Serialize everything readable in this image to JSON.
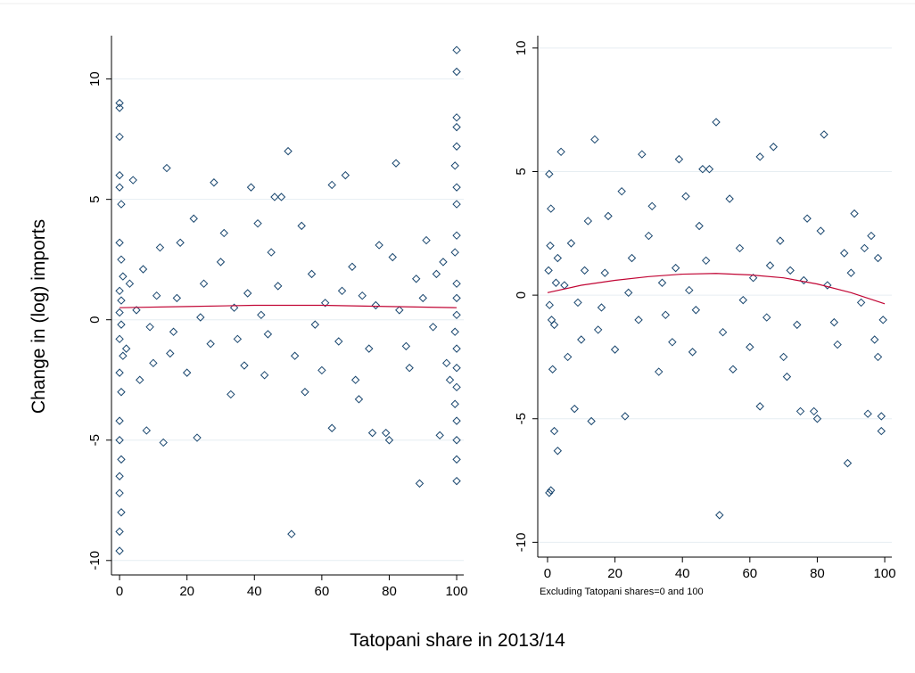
{
  "figure": {
    "xlabel": "Tatopani share in 2013/14",
    "ylabel": "Change in (log) imports"
  },
  "chart_data": [
    {
      "type": "scatter",
      "xlim": [
        -2.4,
        102.1
      ],
      "ylim": [
        -10.6,
        11.8
      ],
      "xticks": [
        0,
        20,
        40,
        60,
        80,
        100
      ],
      "yticks": [
        -10,
        -5,
        0,
        5,
        10
      ],
      "grid": true,
      "series": [
        {
          "kind": "marker",
          "color": "#1a476f",
          "x": [
            0,
            0,
            0,
            0,
            0,
            0.5,
            0,
            0.5,
            1,
            0,
            0.5,
            0,
            0.5,
            0,
            1,
            0,
            0.5,
            0,
            0,
            0.5,
            0,
            0,
            0.5,
            0,
            0,
            100,
            100,
            100,
            100,
            100,
            99.5,
            100,
            100,
            100,
            99.5,
            100,
            100,
            100,
            99.5,
            100,
            100,
            100,
            99.5,
            100,
            100,
            100,
            100,
            4,
            14,
            28,
            39,
            50,
            51,
            89,
            82,
            67,
            63,
            46,
            48,
            22,
            18,
            13,
            23,
            63,
            75,
            79,
            80,
            95,
            33,
            43,
            60,
            70,
            55,
            8,
            6,
            10,
            16,
            25,
            30,
            35,
            38,
            42,
            45,
            52,
            57,
            61,
            65,
            69,
            72,
            74,
            77,
            83,
            86,
            88,
            91,
            93,
            96,
            97,
            3,
            2,
            5,
            7,
            9,
            11,
            12,
            15,
            17,
            20,
            24,
            27,
            31,
            34,
            37,
            41,
            44,
            47,
            54,
            58,
            66,
            71,
            76,
            81,
            85,
            90,
            94,
            98
          ],
          "y": [
            9.0,
            8.8,
            7.6,
            6.0,
            5.5,
            4.8,
            3.2,
            2.5,
            1.8,
            1.2,
            0.8,
            0.3,
            -0.2,
            -0.8,
            -1.5,
            -2.2,
            -3.0,
            -4.2,
            -5.0,
            -5.8,
            -6.5,
            -7.2,
            -8.0,
            -8.8,
            -9.6,
            11.2,
            10.3,
            8.4,
            8.0,
            7.2,
            6.4,
            5.5,
            4.8,
            3.5,
            2.8,
            1.5,
            0.9,
            0.2,
            -0.5,
            -1.2,
            -2.0,
            -2.8,
            -3.5,
            -4.2,
            -5.0,
            -5.8,
            -6.7,
            5.8,
            6.3,
            5.7,
            5.5,
            7.0,
            -8.9,
            -6.8,
            6.5,
            6.0,
            5.6,
            5.1,
            5.1,
            4.2,
            3.2,
            -5.1,
            -4.9,
            -4.5,
            -4.7,
            -4.7,
            -5.0,
            -4.8,
            -3.1,
            -2.3,
            -2.1,
            -2.5,
            -3.0,
            -4.6,
            -2.5,
            -1.8,
            -0.5,
            1.5,
            2.4,
            -0.8,
            1.1,
            0.2,
            2.8,
            -1.5,
            1.9,
            0.7,
            -0.9,
            2.2,
            1.0,
            -1.2,
            3.1,
            0.4,
            -2.0,
            1.7,
            3.3,
            -0.3,
            2.4,
            -1.8,
            1.5,
            -1.2,
            0.4,
            2.1,
            -0.3,
            1.0,
            3.0,
            -1.4,
            0.9,
            -2.2,
            0.1,
            -1.0,
            3.6,
            0.5,
            -1.9,
            4.0,
            -0.6,
            1.4,
            3.9,
            -0.2,
            1.2,
            -3.3,
            0.6,
            2.6,
            -1.1,
            0.9,
            1.9,
            -2.5
          ]
        },
        {
          "kind": "line",
          "color": "#c10534",
          "x": [
            0,
            20,
            40,
            60,
            80,
            100
          ],
          "y": [
            0.5,
            0.55,
            0.6,
            0.6,
            0.55,
            0.5
          ]
        }
      ]
    },
    {
      "type": "scatter",
      "xlim": [
        -2.9,
        102.1
      ],
      "ylim": [
        -10.6,
        10.5
      ],
      "xticks": [
        0,
        20,
        40,
        60,
        80,
        100
      ],
      "yticks": [
        -10,
        -5,
        0,
        5,
        10
      ],
      "grid": true,
      "note": "Excluding Tatopani shares=0 and 100",
      "series": [
        {
          "kind": "marker",
          "color": "#1a476f",
          "x": [
            0.5,
            1,
            0.5,
            1,
            2,
            3,
            1.5,
            0.8,
            0.3,
            1.2,
            2.5,
            0.6,
            99,
            99,
            98,
            99.5,
            4,
            14,
            28,
            39,
            50,
            51,
            89,
            82,
            67,
            63,
            46,
            48,
            22,
            18,
            13,
            23,
            63,
            75,
            79,
            80,
            95,
            33,
            43,
            60,
            70,
            55,
            8,
            6,
            10,
            16,
            25,
            30,
            35,
            38,
            42,
            45,
            52,
            57,
            61,
            65,
            69,
            72,
            74,
            77,
            83,
            86,
            88,
            91,
            93,
            96,
            97,
            3,
            2,
            5,
            7,
            9,
            11,
            12,
            15,
            17,
            20,
            24,
            27,
            31,
            34,
            37,
            41,
            44,
            47,
            54,
            58,
            66,
            71,
            76,
            81,
            85,
            90,
            94,
            98
          ],
          "y": [
            -8.0,
            -7.9,
            4.9,
            3.5,
            -5.5,
            -6.3,
            -3.0,
            2.0,
            1.0,
            -1.0,
            0.5,
            -0.4,
            -4.9,
            -5.5,
            1.5,
            -1.0,
            5.8,
            6.3,
            5.7,
            5.5,
            7.0,
            -8.9,
            -6.8,
            6.5,
            6.0,
            5.6,
            5.1,
            5.1,
            4.2,
            3.2,
            -5.1,
            -4.9,
            -4.5,
            -4.7,
            -4.7,
            -5.0,
            -4.8,
            -3.1,
            -2.3,
            -2.1,
            -2.5,
            -3.0,
            -4.6,
            -2.5,
            -1.8,
            -0.5,
            1.5,
            2.4,
            -0.8,
            1.1,
            0.2,
            2.8,
            -1.5,
            1.9,
            0.7,
            -0.9,
            2.2,
            1.0,
            -1.2,
            3.1,
            0.4,
            -2.0,
            1.7,
            3.3,
            -0.3,
            2.4,
            -1.8,
            1.5,
            -1.2,
            0.4,
            2.1,
            -0.3,
            1.0,
            3.0,
            -1.4,
            0.9,
            -2.2,
            0.1,
            -1.0,
            3.6,
            0.5,
            -1.9,
            4.0,
            -0.6,
            1.4,
            3.9,
            -0.2,
            1.2,
            -3.3,
            0.6,
            2.6,
            -1.1,
            0.9,
            1.9,
            -2.5
          ]
        },
        {
          "kind": "line",
          "color": "#c10534",
          "x": [
            0,
            10,
            20,
            30,
            40,
            50,
            60,
            70,
            80,
            90,
            100
          ],
          "y": [
            0.1,
            0.4,
            0.6,
            0.75,
            0.85,
            0.88,
            0.82,
            0.7,
            0.45,
            0.1,
            -0.35
          ]
        }
      ]
    }
  ]
}
